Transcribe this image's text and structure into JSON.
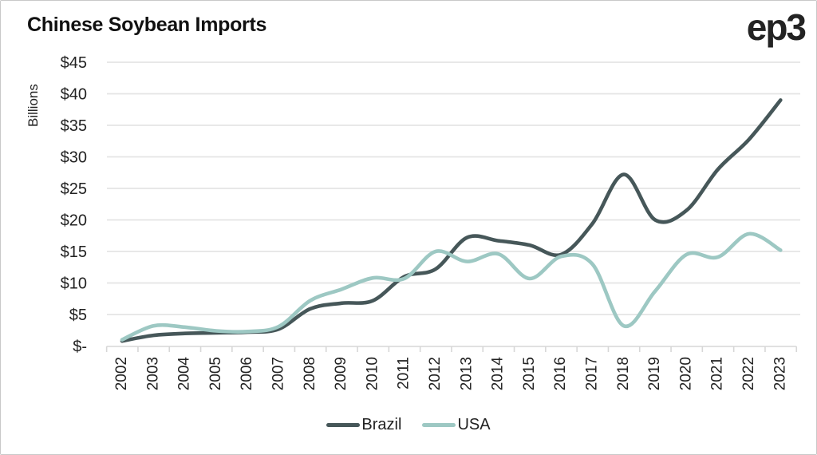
{
  "header": {
    "title": "Chinese Soybean Imports",
    "logo": "ep3"
  },
  "chart_data": {
    "type": "line",
    "title": "Chinese Soybean Imports",
    "xlabel": "",
    "ylabel": "Billions",
    "ylim": [
      0,
      45
    ],
    "grid": true,
    "legend_position": "bottom",
    "y_tick_values": [
      0,
      5,
      10,
      15,
      20,
      25,
      30,
      35,
      40,
      45
    ],
    "y_tick_labels": [
      "$-",
      "$5",
      "$10",
      "$15",
      "$20",
      "$25",
      "$30",
      "$35",
      "$40",
      "$45"
    ],
    "categories": [
      "2002",
      "2003",
      "2004",
      "2005",
      "2006",
      "2007",
      "2008",
      "2009",
      "2010",
      "2011",
      "2012",
      "2013",
      "2014",
      "2015",
      "2016",
      "2017",
      "2018",
      "2019",
      "2020",
      "2021",
      "2022",
      "2023"
    ],
    "series": [
      {
        "name": "Brazil",
        "color": "#465759",
        "values": [
          0.8,
          1.7,
          2.0,
          2.1,
          2.2,
          2.7,
          5.9,
          6.8,
          7.2,
          11.0,
          12.2,
          17.2,
          16.7,
          16.0,
          14.5,
          19.4,
          27.2,
          20.0,
          21.5,
          28.0,
          32.8,
          39.0
        ]
      },
      {
        "name": "USA",
        "color": "#9dc8c3",
        "values": [
          1.0,
          3.2,
          3.0,
          2.4,
          2.3,
          3.1,
          7.2,
          9.0,
          10.8,
          10.7,
          15.0,
          13.4,
          14.6,
          10.7,
          14.2,
          13.0,
          3.2,
          8.7,
          14.5,
          14.1,
          17.8,
          15.2
        ]
      }
    ]
  },
  "colors": {
    "gridline": "#e4e4e4",
    "axis": "#d7d7d7",
    "tick_text": "#222222"
  }
}
